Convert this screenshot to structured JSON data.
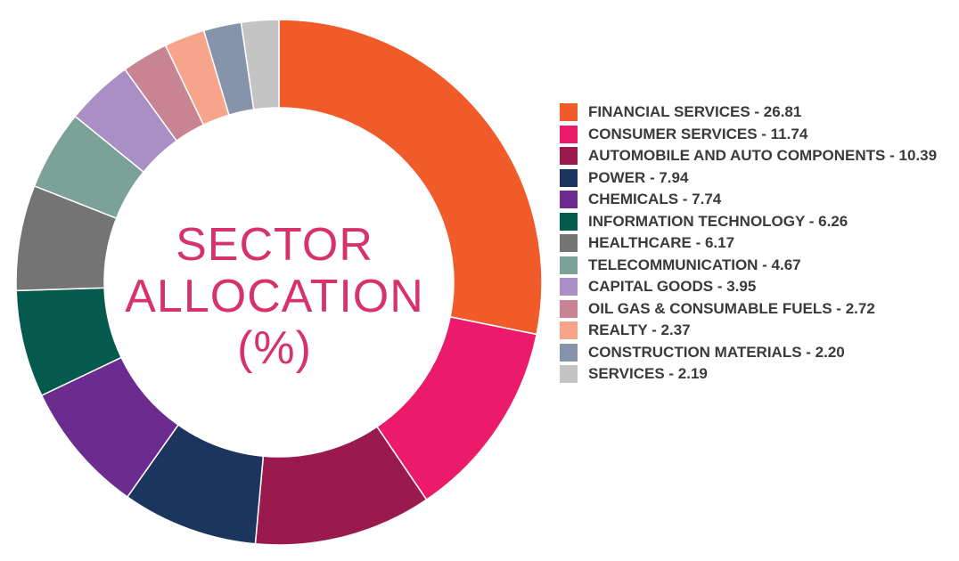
{
  "chart_data": {
    "type": "pie",
    "title_lines": [
      "SECTOR",
      "ALLOCATION",
      "(%)"
    ],
    "legend_position": "right",
    "slices": [
      {
        "label": "FINANCIAL SERVICES - 26.81",
        "value": 26.81,
        "color": "#f15a29"
      },
      {
        "label": "CONSUMER SERVICES - 11.74",
        "value": 11.74,
        "color": "#ec1a6a"
      },
      {
        "label": "AUTOMOBILE AND AUTO COMPONENTS - 10.39",
        "value": 10.39,
        "color": "#9a1a4d"
      },
      {
        "label": "POWER - 7.94",
        "value": 7.94,
        "color": "#1c355e"
      },
      {
        "label": "CHEMICALS - 7.74",
        "value": 7.74,
        "color": "#6c2c8f"
      },
      {
        "label": "INFORMATION TECHNOLOGY - 6.26",
        "value": 6.26,
        "color": "#045a4c"
      },
      {
        "label": "HEALTHCARE - 6.17",
        "value": 6.17,
        "color": "#747474"
      },
      {
        "label": "TELECOMMUNICATION - 4.67",
        "value": 4.67,
        "color": "#7ba198"
      },
      {
        "label": "CAPITAL GOODS - 3.95",
        "value": 3.95,
        "color": "#a98fc4"
      },
      {
        "label": "OIL GAS & CONSUMABLE FUELS - 2.72",
        "value": 2.72,
        "color": "#c98494"
      },
      {
        "label": "REALTY - 2.37",
        "value": 2.37,
        "color": "#f8a48a"
      },
      {
        "label": "CONSTRUCTION MATERIALS - 2.20",
        "value": 2.2,
        "color": "#8594aa"
      },
      {
        "label": "SERVICES - 2.19",
        "value": 2.19,
        "color": "#c4c4c4"
      }
    ]
  }
}
